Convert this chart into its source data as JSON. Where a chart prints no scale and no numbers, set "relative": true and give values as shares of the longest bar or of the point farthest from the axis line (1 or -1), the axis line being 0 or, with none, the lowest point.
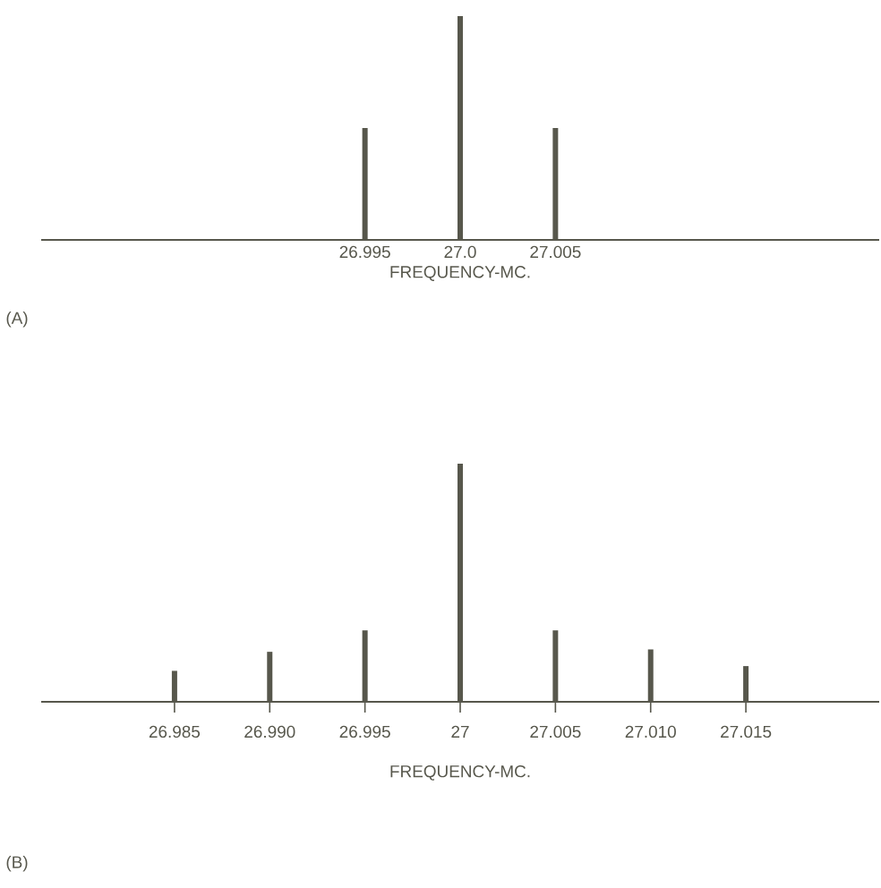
{
  "chart_data": [
    {
      "type": "bar",
      "x": [
        26.995,
        27,
        27.005
      ],
      "values": [
        0.5,
        1,
        0.5
      ],
      "color": "#57574c",
      "relative": true,
      "xlim": [
        26.978,
        27.022
      ],
      "xticks": [
        26.995,
        {
          "value": 27,
          "label": "27.0"
        },
        27.005
      ],
      "xlabel": "FREQUENCY-MC.",
      "annotations": [
        "(A)"
      ]
    },
    {
      "type": "bar",
      "x": [
        26.985,
        26.99,
        26.995,
        27,
        27.005,
        27.01,
        27.015
      ],
      "values": [
        0.13,
        0.21,
        0.3,
        1,
        0.3,
        0.22,
        0.15
      ],
      "color": "#57574c",
      "relative": true,
      "xlim": [
        26.978,
        27.022
      ],
      "xticks": [
        26.985,
        {
          "value": 26.99,
          "label": "26.990"
        },
        26.995,
        27,
        27.005,
        {
          "value": 27.01,
          "label": "27.010"
        },
        27.015
      ],
      "xlabel": "FREQUENCY-MC.",
      "annotations": [
        "(B)"
      ]
    }
  ]
}
